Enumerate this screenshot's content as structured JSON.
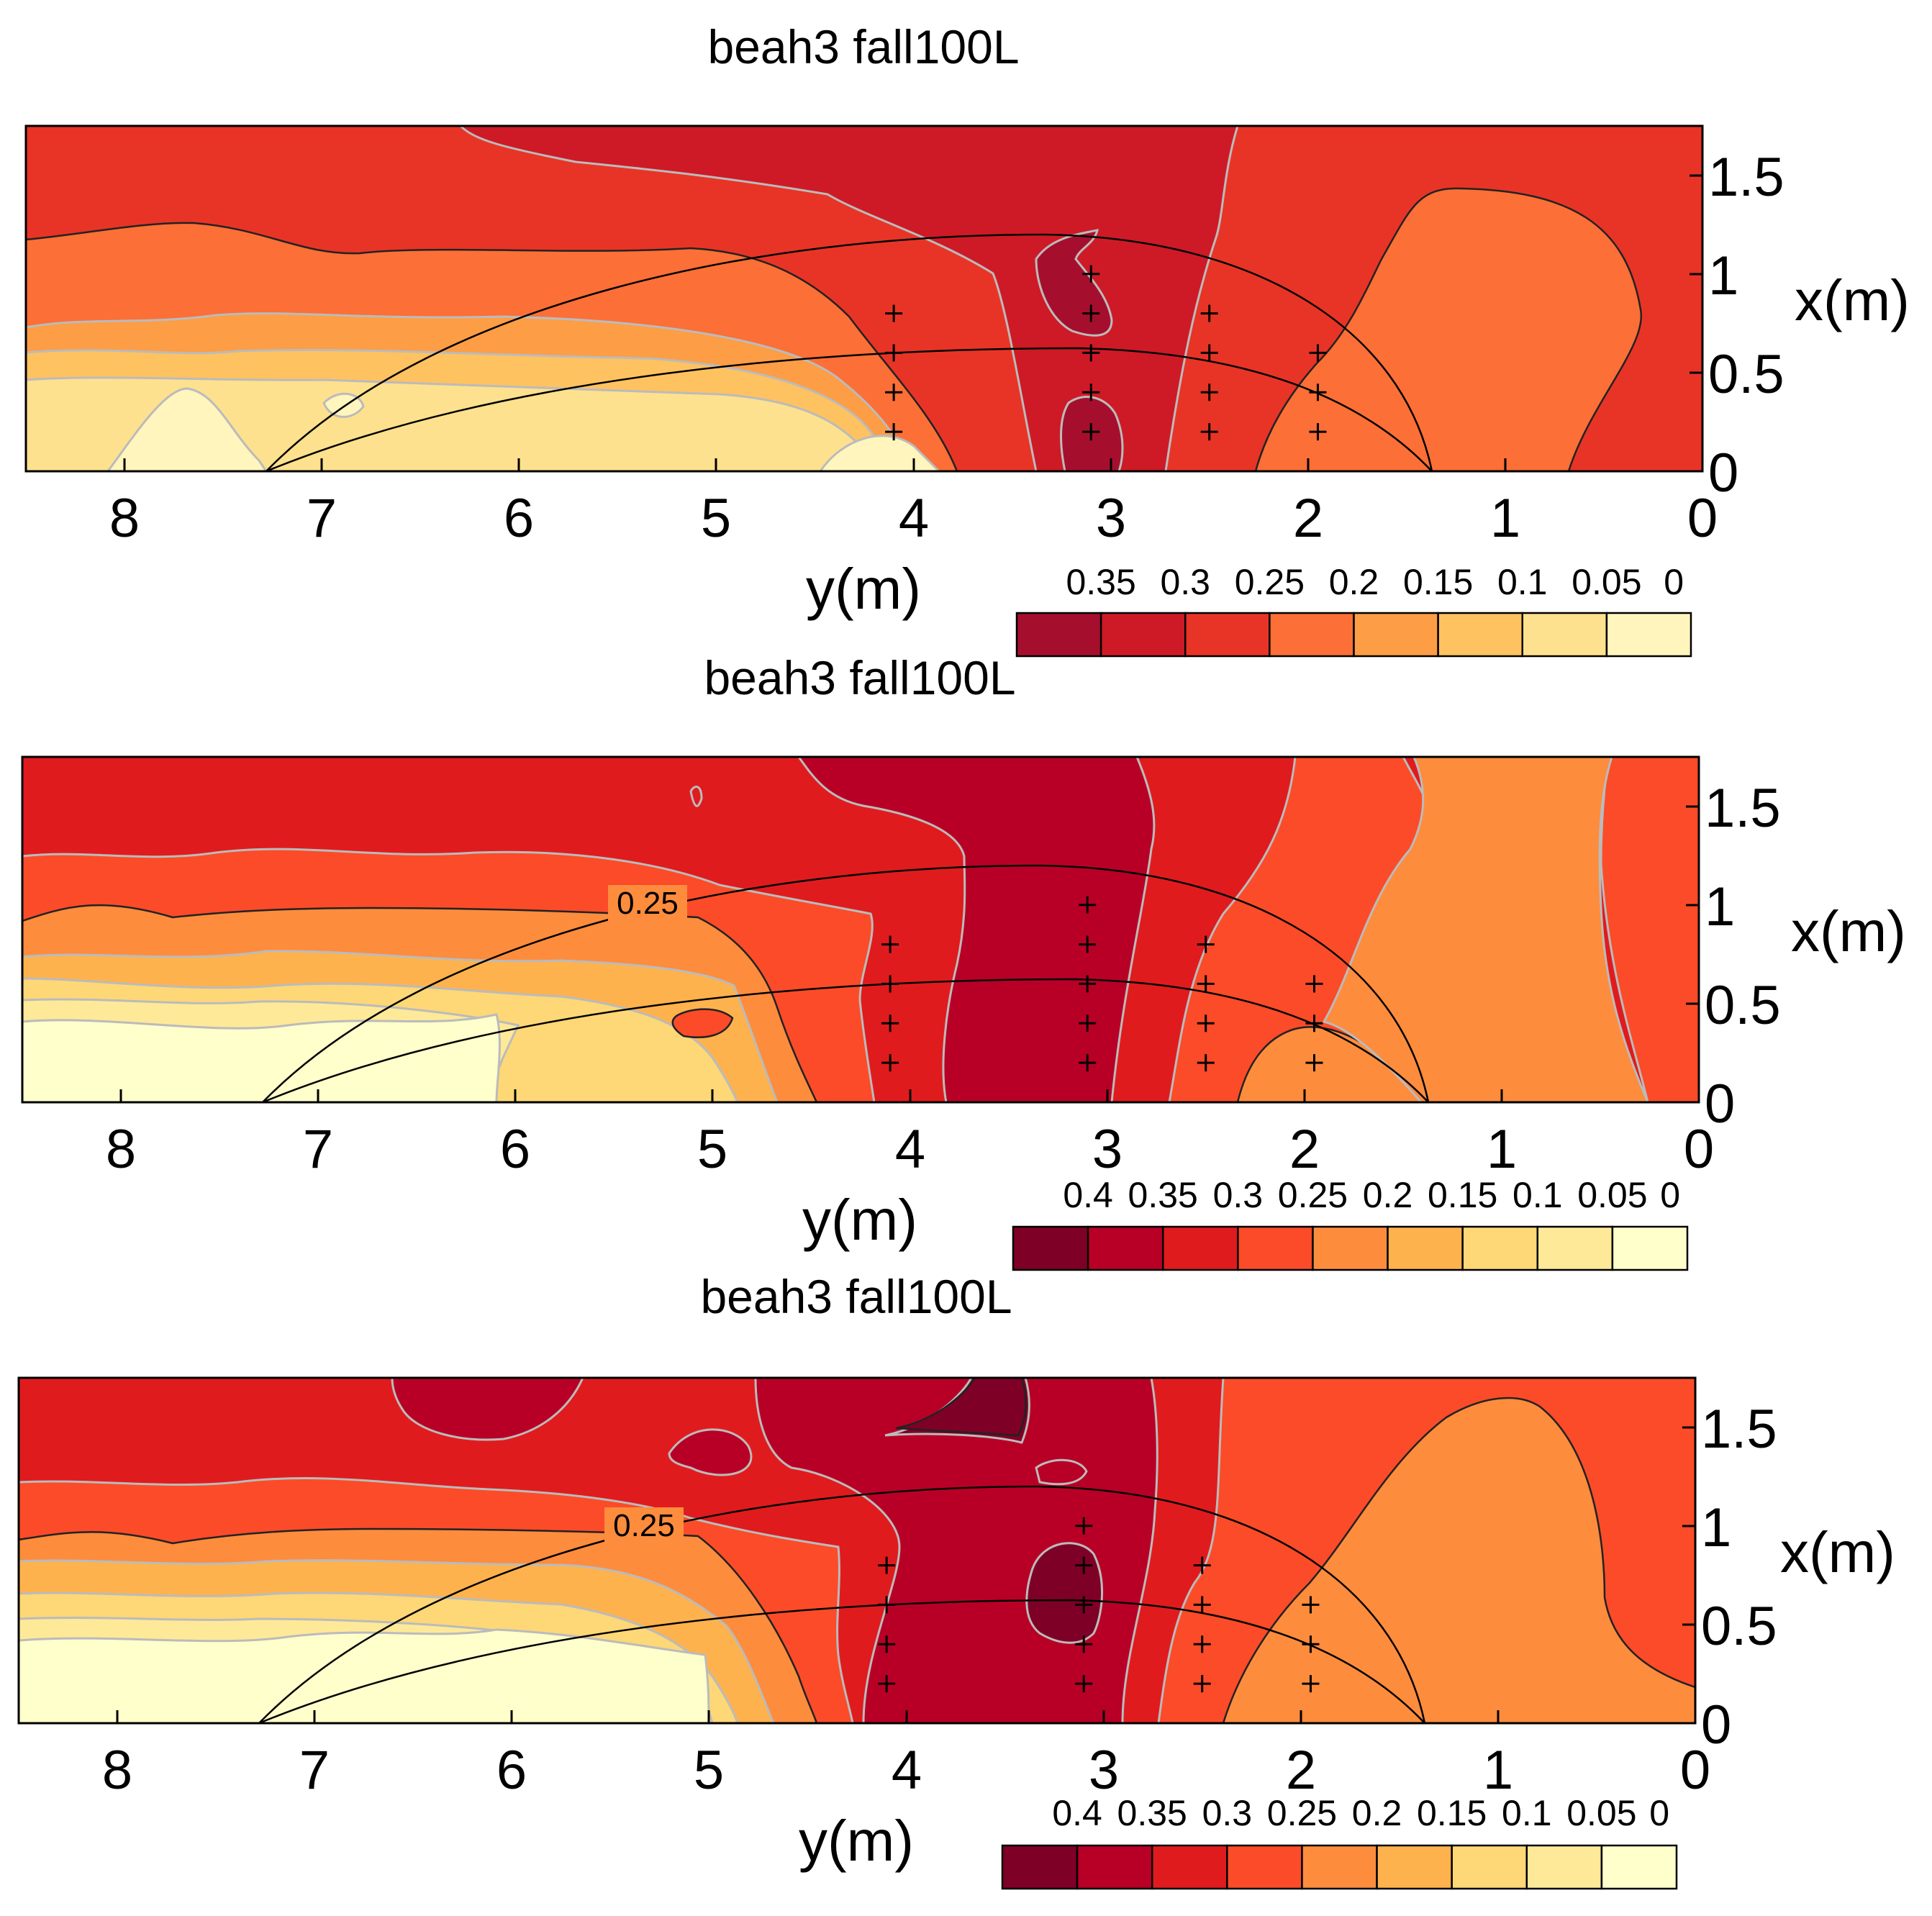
{
  "chart_data": [
    {
      "type": "filled-contour",
      "title": "beah3 fall100L",
      "xlabel": "y(m)",
      "ylabel": "x(m)",
      "xlim": [
        8.5,
        0
      ],
      "ylim": [
        0,
        1.75
      ],
      "xticks": [
        "8",
        "7",
        "6",
        "5",
        "4",
        "3",
        "2",
        "1",
        "0"
      ],
      "yticks": [
        "0",
        "0.5",
        "1",
        "1.5"
      ],
      "colorbar_levels": [
        "0.35",
        "0.3",
        "0.25",
        "0.2",
        "0.15",
        "0.1",
        "0.05",
        "0"
      ],
      "colorbar_colors": [
        "#a50f2d",
        "#ce1a26",
        "#e83426",
        "#fc6f36",
        "#fd9d45",
        "#fec261",
        "#fee18e",
        "#fff5bd"
      ],
      "contour_labels": [],
      "probes": [
        [
          4.1,
          0.2
        ],
        [
          4.1,
          0.4
        ],
        [
          4.1,
          0.6
        ],
        [
          4.1,
          0.8
        ],
        [
          3.1,
          0.2
        ],
        [
          3.1,
          0.4
        ],
        [
          3.1,
          0.6
        ],
        [
          3.1,
          0.8
        ],
        [
          3.1,
          1.0
        ],
        [
          2.5,
          0.2
        ],
        [
          2.5,
          0.4
        ],
        [
          2.5,
          0.6
        ],
        [
          2.5,
          0.8
        ],
        [
          1.95,
          0.2
        ],
        [
          1.95,
          0.4
        ],
        [
          1.95,
          0.6
        ]
      ]
    },
    {
      "type": "filled-contour",
      "title": "beah3 fall100L",
      "xlabel": "y(m)",
      "ylabel": "x(m)",
      "xlim": [
        8.5,
        0
      ],
      "ylim": [
        0,
        1.75
      ],
      "xticks": [
        "8",
        "7",
        "6",
        "5",
        "4",
        "3",
        "2",
        "1",
        "0"
      ],
      "yticks": [
        "0",
        "0.5",
        "1",
        "1.5"
      ],
      "colorbar_levels": [
        "0.4",
        "0.35",
        "0.3",
        "0.25",
        "0.2",
        "0.15",
        "0.1",
        "0.05",
        "0"
      ],
      "colorbar_colors": [
        "#7f0026",
        "#b80026",
        "#e01b1e",
        "#fb4b29",
        "#fd8c3d",
        "#feb24d",
        "#fed777",
        "#fee999",
        "#ffffcc"
      ],
      "contour_labels": [
        "0.25"
      ],
      "probes": [
        [
          4.1,
          0.2
        ],
        [
          4.1,
          0.4
        ],
        [
          4.1,
          0.6
        ],
        [
          4.1,
          0.8
        ],
        [
          3.1,
          0.2
        ],
        [
          3.1,
          0.4
        ],
        [
          3.1,
          0.6
        ],
        [
          3.1,
          0.8
        ],
        [
          3.1,
          1.0
        ],
        [
          2.5,
          0.2
        ],
        [
          2.5,
          0.4
        ],
        [
          2.5,
          0.6
        ],
        [
          2.5,
          0.8
        ],
        [
          1.95,
          0.2
        ],
        [
          1.95,
          0.4
        ],
        [
          1.95,
          0.6
        ]
      ]
    },
    {
      "type": "filled-contour",
      "title": "beah3 fall100L",
      "xlabel": "y(m)",
      "ylabel": "x(m)",
      "xlim": [
        8.5,
        0
      ],
      "ylim": [
        0,
        1.75
      ],
      "xticks": [
        "8",
        "7",
        "6",
        "5",
        "4",
        "3",
        "2",
        "1",
        "0"
      ],
      "yticks": [
        "0",
        "0.5",
        "1",
        "1.5"
      ],
      "colorbar_levels": [
        "0.4",
        "0.35",
        "0.3",
        "0.25",
        "0.2",
        "0.15",
        "0.1",
        "0.05",
        "0"
      ],
      "colorbar_colors": [
        "#7f0026",
        "#b80026",
        "#e01b1e",
        "#fb4b29",
        "#fd8c3d",
        "#feb24d",
        "#fed777",
        "#fee999",
        "#ffffcc"
      ],
      "contour_labels": [
        "0.25"
      ],
      "probes": [
        [
          4.1,
          0.2
        ],
        [
          4.1,
          0.4
        ],
        [
          4.1,
          0.6
        ],
        [
          4.1,
          0.8
        ],
        [
          3.1,
          0.2
        ],
        [
          3.1,
          0.4
        ],
        [
          3.1,
          0.6
        ],
        [
          3.1,
          0.8
        ],
        [
          3.1,
          1.0
        ],
        [
          2.5,
          0.2
        ],
        [
          2.5,
          0.4
        ],
        [
          2.5,
          0.6
        ],
        [
          2.5,
          0.8
        ],
        [
          1.95,
          0.2
        ],
        [
          1.95,
          0.4
        ],
        [
          1.95,
          0.6
        ]
      ]
    }
  ]
}
